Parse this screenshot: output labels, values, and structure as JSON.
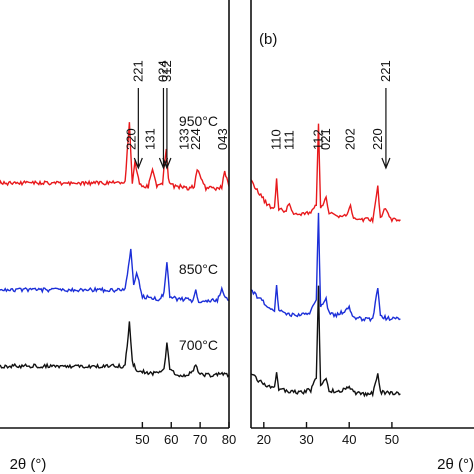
{
  "chart_data": [
    {
      "type": "line",
      "panel": "a",
      "xlabel": "2θ (°)",
      "xlim": [
        0,
        80
      ],
      "x_ticks": [
        50,
        60,
        70,
        80
      ],
      "series": [
        {
          "name": "950°C",
          "color": "#e8191c",
          "x": [
            0,
            44,
            45.5,
            46.5,
            47.5,
            49,
            52,
            53.5,
            55,
            57,
            58.3,
            59,
            61,
            64,
            66,
            68,
            69,
            72,
            75,
            77.5,
            78.5,
            80
          ],
          "y": [
            0.38,
            0.38,
            0.72,
            0.38,
            0.5,
            0.37,
            0.36,
            0.45,
            0.36,
            0.38,
            0.58,
            0.4,
            0.36,
            0.36,
            0.35,
            0.36,
            0.46,
            0.35,
            0.35,
            0.36,
            0.44,
            0.36
          ]
        },
        {
          "name": "850°C",
          "color": "#1c2fd8",
          "x": [
            0,
            44,
            46,
            47,
            48,
            50,
            53,
            56,
            57.5,
            58.5,
            59.5,
            62,
            65,
            67.5,
            68.5,
            69.5,
            72,
            76,
            77.5,
            80
          ],
          "y": [
            0.4,
            0.4,
            0.62,
            0.42,
            0.5,
            0.36,
            0.36,
            0.35,
            0.38,
            0.56,
            0.37,
            0.35,
            0.35,
            0.34,
            0.4,
            0.34,
            0.34,
            0.34,
            0.4,
            0.34
          ]
        },
        {
          "name": "700°C",
          "color": "#111111",
          "x": [
            0,
            44,
            45.5,
            46.5,
            48,
            52,
            56,
            57.5,
            58.5,
            59.5,
            62,
            66,
            68.5,
            70,
            74,
            78,
            80
          ],
          "y": [
            0.38,
            0.38,
            0.62,
            0.4,
            0.36,
            0.34,
            0.34,
            0.37,
            0.5,
            0.36,
            0.33,
            0.33,
            0.38,
            0.33,
            0.33,
            0.34,
            0.33
          ]
        }
      ],
      "peak_labels": [
        {
          "text": "220",
          "x": 46.2,
          "arrow": false
        },
        {
          "text": "221",
          "x": 48.6,
          "arrow": true
        },
        {
          "text": "131",
          "x": 52.9,
          "arrow": false
        },
        {
          "text": "024",
          "x": 57.3,
          "arrow": true
        },
        {
          "text": "312",
          "x": 58.5,
          "arrow": true
        },
        {
          "text": "133",
          "x": 64.6,
          "arrow": false
        },
        {
          "text": "224",
          "x": 68.5,
          "arrow": false
        },
        {
          "text": "043",
          "x": 78.0,
          "arrow": false
        }
      ]
    },
    {
      "type": "line",
      "panel": "b",
      "panel_label": "(b)",
      "xlabel": "2θ (°)",
      "xlim": [
        17,
        80
      ],
      "x_ticks": [
        20,
        30,
        40,
        50
      ],
      "series": [
        {
          "name": "950°C",
          "color": "#e8191c",
          "x": [
            17,
            19,
            21,
            22.5,
            23,
            23.5,
            25,
            26,
            27,
            29,
            31,
            32.3,
            32.8,
            33.3,
            34.6,
            35.3,
            37,
            39.5,
            40.3,
            41,
            43,
            45.5,
            46.7,
            47.3,
            48.5,
            50,
            52
          ],
          "y": [
            0.68,
            0.6,
            0.54,
            0.52,
            0.68,
            0.52,
            0.5,
            0.55,
            0.49,
            0.49,
            0.5,
            0.55,
            1.0,
            0.52,
            0.58,
            0.5,
            0.48,
            0.48,
            0.54,
            0.47,
            0.46,
            0.46,
            0.64,
            0.47,
            0.52,
            0.46,
            0.46
          ]
        },
        {
          "name": "850°C",
          "color": "#1c2fd8",
          "x": [
            17,
            19,
            21,
            22.5,
            23,
            23.5,
            25,
            27,
            29,
            31,
            32.3,
            32.8,
            33.3,
            34.6,
            35.3,
            37,
            40,
            41,
            43,
            45.5,
            46.7,
            47.3,
            50,
            52
          ],
          "y": [
            0.55,
            0.5,
            0.46,
            0.44,
            0.58,
            0.44,
            0.42,
            0.41,
            0.41,
            0.43,
            0.5,
            0.98,
            0.45,
            0.5,
            0.42,
            0.41,
            0.45,
            0.4,
            0.39,
            0.39,
            0.56,
            0.4,
            0.39,
            0.39
          ]
        },
        {
          "name": "700°C",
          "color": "#111111",
          "x": [
            17,
            19,
            21,
            22.5,
            23,
            23.5,
            25,
            27,
            29,
            31,
            32.3,
            32.8,
            33.3,
            34.6,
            35.3,
            37,
            40,
            41,
            43,
            45.5,
            46.7,
            47.3,
            50,
            52
          ],
          "y": [
            0.44,
            0.4,
            0.37,
            0.36,
            0.46,
            0.36,
            0.35,
            0.34,
            0.34,
            0.35,
            0.42,
            0.92,
            0.37,
            0.42,
            0.35,
            0.34,
            0.37,
            0.34,
            0.33,
            0.33,
            0.45,
            0.34,
            0.33,
            0.33
          ]
        }
      ],
      "peak_labels": [
        {
          "text": "110",
          "x": 23.0,
          "arrow": false
        },
        {
          "text": "111",
          "x": 26.0,
          "arrow": false
        },
        {
          "text": "112",
          "x": 32.8,
          "arrow": false
        },
        {
          "text": "021",
          "x": 34.6,
          "arrow": false
        },
        {
          "text": "202",
          "x": 40.3,
          "arrow": false
        },
        {
          "text": "220",
          "x": 46.7,
          "arrow": false
        },
        {
          "text": "221",
          "x": 48.6,
          "arrow": true
        }
      ]
    }
  ]
}
